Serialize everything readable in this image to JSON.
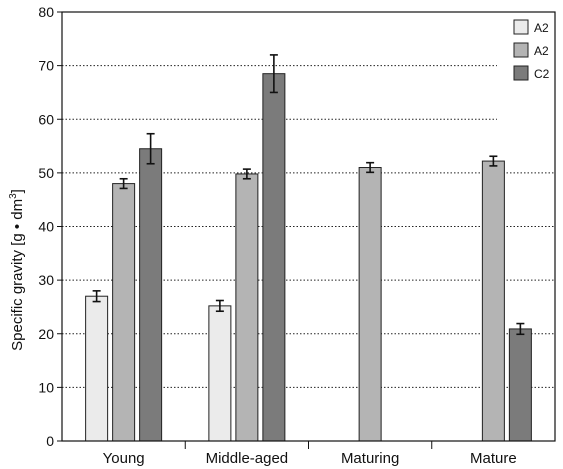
{
  "chart_data": {
    "type": "bar",
    "categories": [
      "Young",
      "Middle-aged",
      "Maturing",
      "Mature"
    ],
    "ylabel_main": "Specific gravity [g • dm",
    "ylabel_sup": "3",
    "ylabel_close": "]",
    "ylim": [
      0,
      80
    ],
    "yticks": [
      0,
      10,
      20,
      30,
      40,
      50,
      60,
      70,
      80
    ],
    "grid": "horizontal dotted",
    "legend_position": "top-right",
    "series": [
      {
        "name": "A2",
        "color": "#ebebeb",
        "values": [
          27,
          25.2,
          null,
          null
        ],
        "errors": [
          1.0,
          1.0,
          null,
          null
        ]
      },
      {
        "name": "A2",
        "color": "#b4b4b4",
        "values": [
          48,
          49.8,
          51,
          52.2
        ],
        "errors": [
          0.9,
          0.9,
          0.9,
          0.9
        ]
      },
      {
        "name": "C2",
        "color": "#7b7b7b",
        "values": [
          54.5,
          68.5,
          null,
          20.9
        ],
        "errors": [
          2.8,
          3.5,
          null,
          1.0
        ]
      }
    ]
  }
}
